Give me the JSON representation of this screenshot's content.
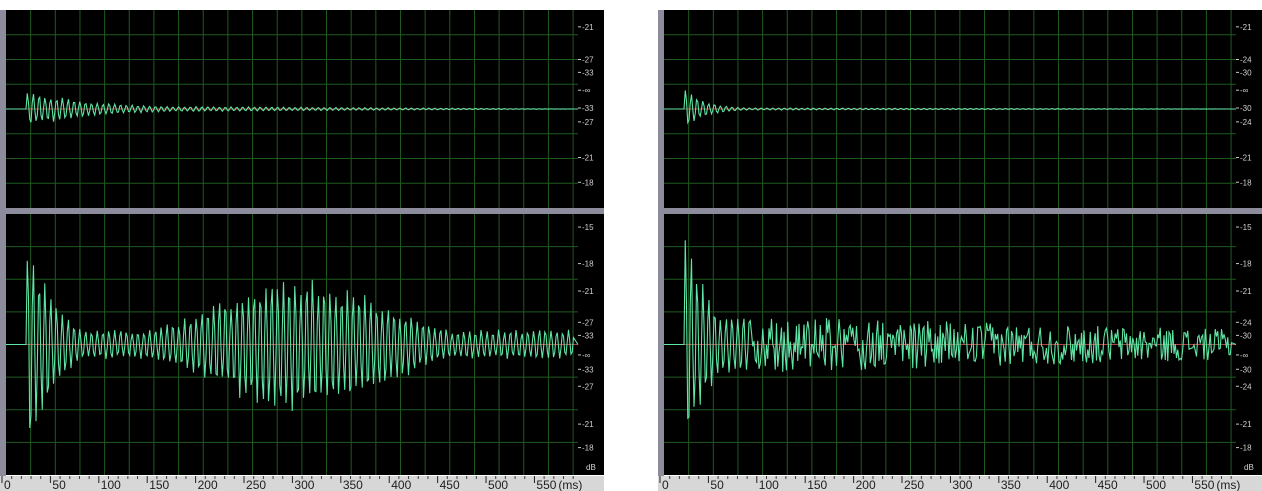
{
  "editors": [
    {
      "name": "left",
      "top_scale": [
        "-21",
        "-27",
        "-33",
        "-∞",
        "-33",
        "-27",
        "-21",
        "-18"
      ],
      "bottom_scale": [
        "-15",
        "-18",
        "-21",
        "-27",
        "-33",
        "-∞",
        "-33",
        "-27",
        "-21",
        "-18"
      ],
      "unit": "dB",
      "time_ticks": [
        "0",
        "50",
        "100",
        "150",
        "200",
        "250",
        "300",
        "350",
        "400",
        "450",
        "500",
        "550"
      ],
      "time_unit": "(ms)",
      "top_wave": {
        "peak": 0.72,
        "tail": 0.22,
        "decay": 0.006,
        "pattern": "decay"
      },
      "bottom_wave": {
        "peak": 1.0,
        "tail": 0.55,
        "decay": 0.02,
        "pattern": "swell"
      }
    },
    {
      "name": "right",
      "top_scale": [
        "-21",
        "-24",
        "-30",
        "-∞",
        "-30",
        "-24",
        "-21",
        "-18"
      ],
      "bottom_scale": [
        "-15",
        "-18",
        "-21",
        "-24",
        "-30",
        "-∞",
        "-30",
        "-24",
        "-21",
        "-18"
      ],
      "unit": "dB",
      "time_ticks": [
        "0",
        "50",
        "100",
        "150",
        "200",
        "250",
        "300",
        "350",
        "400",
        "450",
        "500",
        "550"
      ],
      "time_unit": "(ms)",
      "top_wave": {
        "peak": 0.85,
        "tail": 0.08,
        "decay": 0.02,
        "pattern": "decay"
      },
      "bottom_wave": {
        "peak": 1.0,
        "tail": 0.12,
        "decay": 0.03,
        "pattern": "noise"
      }
    }
  ],
  "colors": {
    "background": "#000000",
    "grid": "#1f5a1f",
    "waveform": "#5fe5a5",
    "centerline": "#b04040",
    "ruler": "#d7d7d7",
    "frame": "#8c8c9c"
  }
}
